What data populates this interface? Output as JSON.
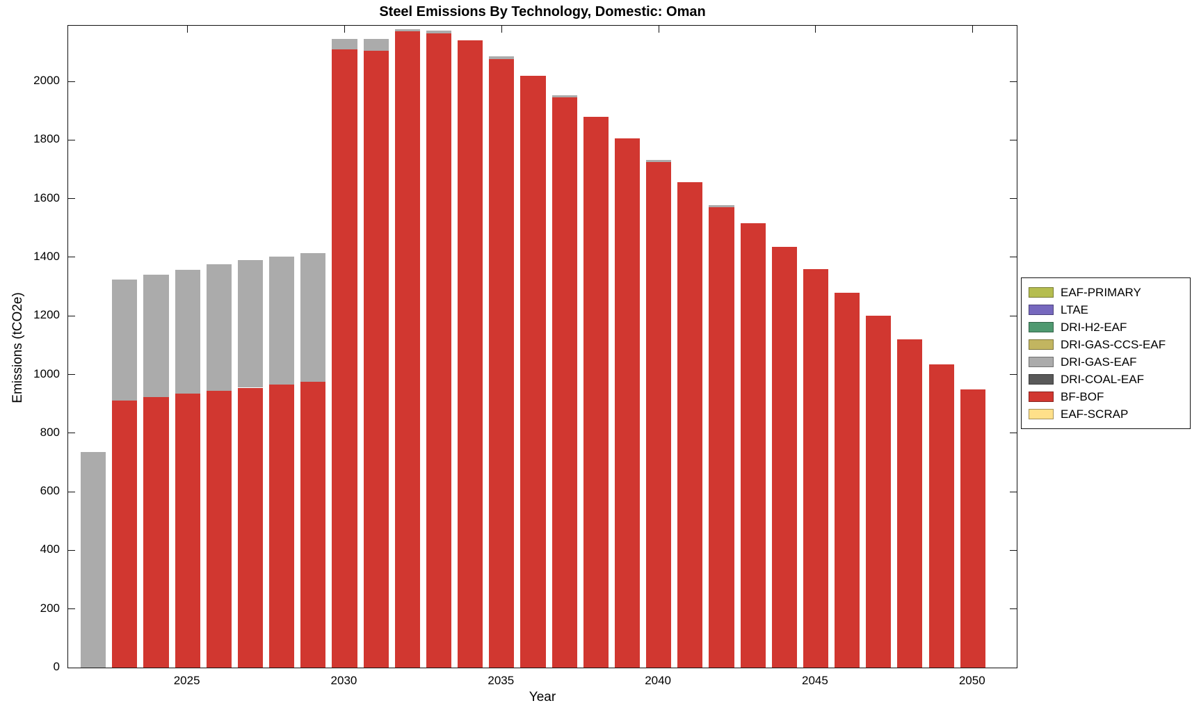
{
  "title": "Steel Emissions By Technology, Domestic: Oman",
  "xlabel": "Year",
  "ylabel": "Emissions (tCO2e)",
  "legend": {
    "items": [
      {
        "label": "EAF-PRIMARY",
        "color": "#B5BD4F"
      },
      {
        "label": "LTAE",
        "color": "#7668BE"
      },
      {
        "label": "DRI-H2-EAF",
        "color": "#4F9970"
      },
      {
        "label": "DRI-GAS-CCS-EAF",
        "color": "#C2B560"
      },
      {
        "label": "DRI-GAS-EAF",
        "color": "#ABABAB"
      },
      {
        "label": "DRI-COAL-EAF",
        "color": "#595959"
      },
      {
        "label": "BF-BOF",
        "color": "#D13730"
      },
      {
        "label": "EAF-SCRAP",
        "color": "#FFE08A"
      }
    ]
  },
  "chart_data": {
    "type": "bar",
    "stacked": true,
    "title": "Steel Emissions By Technology, Domestic: Oman",
    "xlabel": "Year",
    "ylabel": "Emissions (tCO2e)",
    "x": [
      2022,
      2023,
      2024,
      2025,
      2026,
      2027,
      2028,
      2029,
      2030,
      2031,
      2032,
      2033,
      2034,
      2035,
      2036,
      2037,
      2038,
      2039,
      2040,
      2041,
      2042,
      2043,
      2044,
      2045,
      2046,
      2047,
      2048,
      2049,
      2050
    ],
    "series": [
      {
        "name": "BF-BOF",
        "color": "#D13730",
        "values": [
          0,
          910,
          922,
          935,
          945,
          955,
          965,
          975,
          2110,
          2105,
          2170,
          2165,
          2140,
          2075,
          2018,
          1945,
          1880,
          1805,
          1725,
          1655,
          1570,
          1515,
          1435,
          1360,
          1280,
          1200,
          1120,
          1035,
          950
        ]
      },
      {
        "name": "DRI-GAS-EAF",
        "color": "#ABABAB",
        "values": [
          735,
          415,
          418,
          422,
          430,
          435,
          438,
          440,
          35,
          40,
          8,
          8,
          0,
          10,
          0,
          8,
          0,
          0,
          8,
          0,
          7,
          0,
          0,
          0,
          0,
          0,
          0,
          0,
          0
        ]
      }
    ],
    "xticks": [
      2025,
      2030,
      2035,
      2040,
      2045,
      2050
    ],
    "yticks": [
      0,
      200,
      400,
      600,
      800,
      1000,
      1200,
      1400,
      1600,
      1800,
      2000
    ],
    "xlim": [
      2021.2,
      2051.4
    ],
    "ylim": [
      0,
      2190
    ],
    "bar_width": 0.8,
    "grid": false,
    "legend_position": "right-outside"
  }
}
